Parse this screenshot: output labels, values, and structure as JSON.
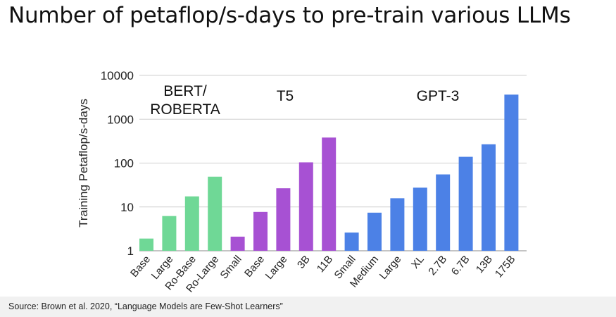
{
  "title": "Number of petaflop/s-days to pre-train various LLMs",
  "source": "Source: Brown et al. 2020, “Language Models are Few-Shot Learners”",
  "colors": {
    "bert": "#6fd896",
    "t5": "#a751d3",
    "gpt3": "#4c81e6"
  },
  "chart_data": {
    "type": "bar",
    "ylabel": "Training Petaflop/s-days",
    "xlabel": "",
    "yscale": "log",
    "ylim": [
      1,
      10000
    ],
    "yticks": [
      "1",
      "10",
      "100",
      "1000",
      "10000"
    ],
    "grid": true,
    "groups": [
      {
        "label": "BERT/\nROBERTA",
        "color": "#6fd896",
        "categories": [
          "Base",
          "Large",
          "Ro-Base",
          "Ro-Large"
        ],
        "values": [
          1.9,
          6.2,
          17.4,
          49
        ]
      },
      {
        "label": "T5",
        "color": "#a751d3",
        "categories": [
          "Small",
          "Base",
          "Large",
          "3B",
          "11B"
        ],
        "values": [
          2.1,
          7.7,
          26.7,
          104,
          382
        ]
      },
      {
        "label": "GPT-3",
        "color": "#4c81e6",
        "categories": [
          "Small",
          "Medium",
          "Large",
          "XL",
          "2.7B",
          "6.7B",
          "13B",
          "175B"
        ],
        "values": [
          2.6,
          7.4,
          15.8,
          27.5,
          55.2,
          139,
          268,
          3640
        ]
      }
    ]
  }
}
